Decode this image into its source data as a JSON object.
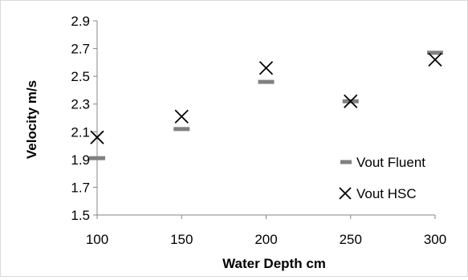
{
  "chart_data": {
    "type": "scatter",
    "title": "",
    "xlabel": "Water Depth cm",
    "ylabel": "Velocity m/s",
    "xlim": [
      100,
      300
    ],
    "ylim": [
      1.5,
      2.9
    ],
    "x_ticks": [
      "100",
      "150",
      "200",
      "250",
      "300"
    ],
    "y_ticks": [
      "1.5",
      "1.7",
      "1.9",
      "2.1",
      "2.3",
      "2.5",
      "2.7",
      "2.9"
    ],
    "grid": false,
    "legend_position": "bottom-right",
    "series": [
      {
        "name": "Vout Fluent",
        "marker": "dash",
        "color": "#808080",
        "points": [
          {
            "x": 100,
            "y": 1.91
          },
          {
            "x": 150,
            "y": 2.12
          },
          {
            "x": 200,
            "y": 2.46
          },
          {
            "x": 250,
            "y": 2.32
          },
          {
            "x": 300,
            "y": 2.67
          }
        ]
      },
      {
        "name": "Vout HSC",
        "marker": "x",
        "color": "#000000",
        "points": [
          {
            "x": 100,
            "y": 2.06
          },
          {
            "x": 150,
            "y": 2.21
          },
          {
            "x": 200,
            "y": 2.56
          },
          {
            "x": 250,
            "y": 2.32
          },
          {
            "x": 300,
            "y": 2.62
          }
        ]
      }
    ]
  }
}
